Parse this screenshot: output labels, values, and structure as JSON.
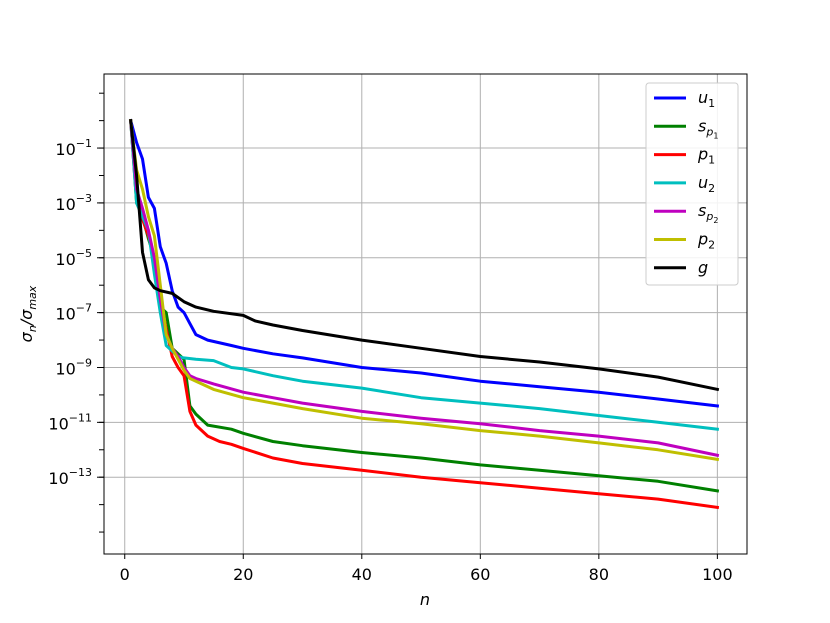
{
  "chart_data": {
    "type": "line",
    "title": "",
    "xlabel": "n",
    "ylabel_main": "σ",
    "ylabel_sub1": "n",
    "ylabel_slash": "/σ",
    "ylabel_sub2": "max",
    "yscale": "log",
    "xlim": [
      -3.5,
      105
    ],
    "ylim_exp": [
      -15.8,
      1.7
    ],
    "grid": true,
    "legend_position": "top-right",
    "x_ticks": [
      {
        "value": 0,
        "label": "0"
      },
      {
        "value": 20,
        "label": "20"
      },
      {
        "value": 40,
        "label": "40"
      },
      {
        "value": 60,
        "label": "60"
      },
      {
        "value": 80,
        "label": "80"
      },
      {
        "value": 100,
        "label": "100"
      }
    ],
    "y_ticks": [
      {
        "exp": -1,
        "base": "10",
        "power": "−1"
      },
      {
        "exp": -3,
        "base": "10",
        "power": "−3"
      },
      {
        "exp": -5,
        "base": "10",
        "power": "−5"
      },
      {
        "exp": -7,
        "base": "10",
        "power": "−7"
      },
      {
        "exp": -9,
        "base": "10",
        "power": "−9"
      },
      {
        "exp": -11,
        "base": "10",
        "power": "−11"
      },
      {
        "exp": -13,
        "base": "10",
        "power": "−13"
      }
    ],
    "y_grid_exps": [
      -1,
      -3,
      -5,
      -7,
      -9,
      -11,
      -13
    ],
    "series": [
      {
        "label_main": "u",
        "label_sub": "1",
        "label_subsub": "",
        "color": "#0000ff",
        "points": [
          [
            1,
            0
          ],
          [
            2,
            -0.8
          ],
          [
            3,
            -1.4
          ],
          [
            4,
            -2.8
          ],
          [
            5,
            -3.2
          ],
          [
            6,
            -4.6
          ],
          [
            7,
            -5.2
          ],
          [
            8,
            -6.2
          ],
          [
            9,
            -6.8
          ],
          [
            10,
            -7.0
          ],
          [
            11,
            -7.4
          ],
          [
            12,
            -7.8
          ],
          [
            14,
            -8.0
          ],
          [
            18,
            -8.2
          ],
          [
            20,
            -8.3
          ],
          [
            25,
            -8.5
          ],
          [
            30,
            -8.65
          ],
          [
            40,
            -9.0
          ],
          [
            50,
            -9.2
          ],
          [
            60,
            -9.5
          ],
          [
            70,
            -9.7
          ],
          [
            80,
            -9.9
          ],
          [
            90,
            -10.15
          ],
          [
            100,
            -10.4
          ]
        ]
      },
      {
        "label_main": "s",
        "label_sub": "p",
        "label_subsub": "1",
        "color": "#008000",
        "points": [
          [
            1,
            0
          ],
          [
            2,
            -3.0
          ],
          [
            3,
            -3.5
          ],
          [
            4,
            -4.3
          ],
          [
            5,
            -5.0
          ],
          [
            6,
            -6.8
          ],
          [
            7,
            -7.0
          ],
          [
            8,
            -8.3
          ],
          [
            9,
            -8.5
          ],
          [
            10,
            -8.7
          ],
          [
            11,
            -10.4
          ],
          [
            12,
            -10.7
          ],
          [
            14,
            -11.1
          ],
          [
            18,
            -11.25
          ],
          [
            20,
            -11.4
          ],
          [
            25,
            -11.7
          ],
          [
            30,
            -11.85
          ],
          [
            40,
            -12.1
          ],
          [
            50,
            -12.3
          ],
          [
            60,
            -12.55
          ],
          [
            70,
            -12.75
          ],
          [
            80,
            -12.95
          ],
          [
            90,
            -13.15
          ],
          [
            100,
            -13.5
          ]
        ]
      },
      {
        "label_main": "p",
        "label_sub": "1",
        "label_subsub": "",
        "color": "#ff0000",
        "points": [
          [
            1,
            0
          ],
          [
            2,
            -2.8
          ],
          [
            3,
            -3.6
          ],
          [
            4,
            -4.2
          ],
          [
            5,
            -5.0
          ],
          [
            6,
            -6.5
          ],
          [
            7,
            -7.6
          ],
          [
            8,
            -8.6
          ],
          [
            9,
            -9.0
          ],
          [
            10,
            -9.3
          ],
          [
            11,
            -10.6
          ],
          [
            12,
            -11.1
          ],
          [
            14,
            -11.5
          ],
          [
            16,
            -11.7
          ],
          [
            18,
            -11.8
          ],
          [
            20,
            -11.95
          ],
          [
            25,
            -12.3
          ],
          [
            30,
            -12.5
          ],
          [
            40,
            -12.75
          ],
          [
            50,
            -13.0
          ],
          [
            60,
            -13.2
          ],
          [
            70,
            -13.4
          ],
          [
            80,
            -13.6
          ],
          [
            90,
            -13.8
          ],
          [
            100,
            -14.1
          ]
        ]
      },
      {
        "label_main": "u",
        "label_sub": "2",
        "label_subsub": "",
        "color": "#00bfbf",
        "points": [
          [
            1,
            0
          ],
          [
            2,
            -3.0
          ],
          [
            3,
            -3.5
          ],
          [
            4,
            -4.0
          ],
          [
            5,
            -5.6
          ],
          [
            6,
            -7.0
          ],
          [
            7,
            -8.2
          ],
          [
            8,
            -8.4
          ],
          [
            9,
            -8.6
          ],
          [
            10,
            -8.65
          ],
          [
            12,
            -8.7
          ],
          [
            15,
            -8.75
          ],
          [
            18,
            -9.0
          ],
          [
            20,
            -9.05
          ],
          [
            25,
            -9.3
          ],
          [
            30,
            -9.5
          ],
          [
            40,
            -9.75
          ],
          [
            50,
            -10.1
          ],
          [
            60,
            -10.3
          ],
          [
            70,
            -10.5
          ],
          [
            80,
            -10.75
          ],
          [
            90,
            -11.0
          ],
          [
            100,
            -11.25
          ]
        ]
      },
      {
        "label_main": "s",
        "label_sub": "p",
        "label_subsub": "2",
        "color": "#bf00bf",
        "points": [
          [
            1,
            0
          ],
          [
            2,
            -2.5
          ],
          [
            3,
            -3.2
          ],
          [
            4,
            -4.0
          ],
          [
            5,
            -5.0
          ],
          [
            6,
            -6.5
          ],
          [
            7,
            -7.8
          ],
          [
            8,
            -8.3
          ],
          [
            9,
            -8.6
          ],
          [
            10,
            -9.0
          ],
          [
            11,
            -9.3
          ],
          [
            12,
            -9.4
          ],
          [
            15,
            -9.6
          ],
          [
            20,
            -9.9
          ],
          [
            25,
            -10.1
          ],
          [
            30,
            -10.3
          ],
          [
            40,
            -10.6
          ],
          [
            50,
            -10.85
          ],
          [
            60,
            -11.05
          ],
          [
            70,
            -11.3
          ],
          [
            80,
            -11.5
          ],
          [
            90,
            -11.75
          ],
          [
            100,
            -12.2
          ]
        ]
      },
      {
        "label_main": "p",
        "label_sub": "2",
        "label_subsub": "",
        "color": "#bfbf00",
        "points": [
          [
            1,
            0
          ],
          [
            2,
            -1.8
          ],
          [
            3,
            -2.5
          ],
          [
            4,
            -3.5
          ],
          [
            5,
            -4.2
          ],
          [
            6,
            -6.0
          ],
          [
            7,
            -7.8
          ],
          [
            8,
            -8.3
          ],
          [
            9,
            -8.7
          ],
          [
            10,
            -9.1
          ],
          [
            11,
            -9.4
          ],
          [
            12,
            -9.5
          ],
          [
            15,
            -9.8
          ],
          [
            20,
            -10.1
          ],
          [
            25,
            -10.3
          ],
          [
            30,
            -10.5
          ],
          [
            40,
            -10.85
          ],
          [
            50,
            -11.05
          ],
          [
            60,
            -11.3
          ],
          [
            70,
            -11.5
          ],
          [
            80,
            -11.75
          ],
          [
            90,
            -12.0
          ],
          [
            100,
            -12.35
          ]
        ]
      },
      {
        "label_main": "g",
        "label_sub": "",
        "label_subsub": "",
        "color": "#000000",
        "points": [
          [
            1,
            0
          ],
          [
            2,
            -2.0
          ],
          [
            3,
            -4.8
          ],
          [
            4,
            -5.8
          ],
          [
            5,
            -6.1
          ],
          [
            6,
            -6.2
          ],
          [
            8,
            -6.3
          ],
          [
            10,
            -6.6
          ],
          [
            12,
            -6.8
          ],
          [
            15,
            -6.95
          ],
          [
            20,
            -7.1
          ],
          [
            22,
            -7.3
          ],
          [
            25,
            -7.45
          ],
          [
            30,
            -7.65
          ],
          [
            40,
            -8.0
          ],
          [
            50,
            -8.3
          ],
          [
            60,
            -8.6
          ],
          [
            70,
            -8.8
          ],
          [
            80,
            -9.05
          ],
          [
            90,
            -9.35
          ],
          [
            100,
            -9.8
          ]
        ]
      }
    ]
  }
}
